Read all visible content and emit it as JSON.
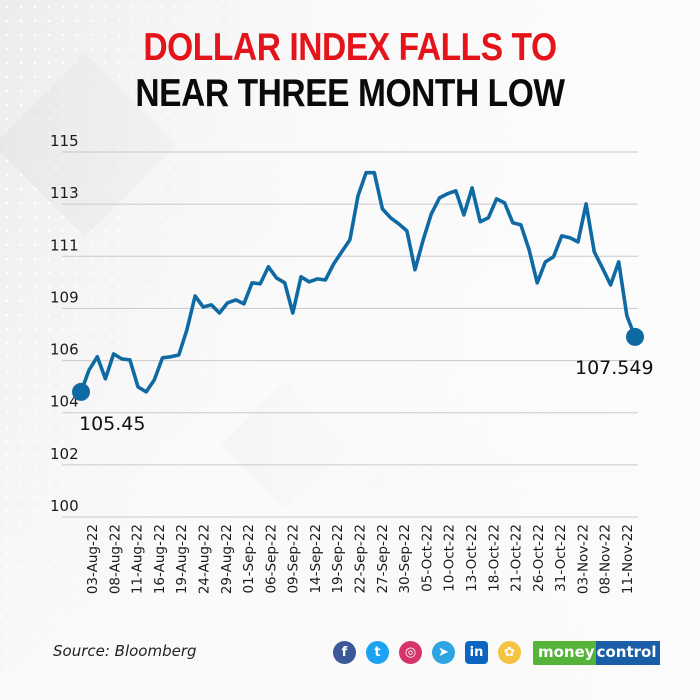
{
  "title": {
    "line1": "DOLLAR INDEX FALLS TO",
    "line2": "NEAR THREE MONTH LOW",
    "line1_color": "#e4141b",
    "line2_color": "#0a0a0a"
  },
  "footer": {
    "source": "Source: Bloomberg",
    "social_icons": [
      {
        "name": "facebook-icon",
        "glyph": "f",
        "color": "#3b5998"
      },
      {
        "name": "twitter-icon",
        "glyph": "t",
        "color": "#1da1f2"
      },
      {
        "name": "instagram-icon",
        "glyph": "◎",
        "color": "#d6336c"
      },
      {
        "name": "telegram-icon",
        "glyph": "➤",
        "color": "#2ca5e0"
      },
      {
        "name": "linkedin-icon",
        "glyph": "in",
        "color": "#0a66c2"
      },
      {
        "name": "koo-icon",
        "glyph": "✿",
        "color": "#f5c242"
      }
    ],
    "brand": {
      "part1": "money",
      "part2": "control",
      "color1": "#56b33a",
      "color2": "#1b5ea8"
    }
  },
  "chart_data": {
    "type": "line",
    "title": "DOLLAR INDEX FALLS TO NEAR THREE MONTH LOW",
    "xlabel": "",
    "ylabel": "",
    "line_color": "#0f6aa3",
    "grid": true,
    "y_tick_labels": [
      "115",
      "113",
      "111",
      "109",
      "106",
      "104",
      "102",
      "100"
    ],
    "ylim": [
      100.68,
      114.6
    ],
    "x_tick_labels": [
      "03-Aug-22",
      "08-Aug-22",
      "11-Aug-22",
      "16-Aug-22",
      "19-Aug-22",
      "24-Aug-22",
      "29-Aug-22",
      "01-Sep-22",
      "06-Sep-22",
      "09-Sep-22",
      "14-Sep-22",
      "19-Sep-22",
      "22-Sep-22",
      "27-Sep-22",
      "30-Sep-22",
      "05-Oct-22",
      "10-Oct-22",
      "13-Oct-22",
      "18-Oct-22",
      "21-Oct-22",
      "26-Oct-22",
      "31-Oct-22",
      "03-Nov-22",
      "08-Nov-22",
      "11-Nov-22"
    ],
    "annotations": [
      {
        "label": "105.45",
        "point": "start"
      },
      {
        "label": "107.549",
        "point": "end"
      }
    ],
    "series": [
      {
        "name": "Dollar Index",
        "values": [
          105.45,
          106.29,
          106.79,
          105.95,
          106.9,
          106.71,
          106.67,
          105.64,
          105.45,
          105.91,
          106.75,
          106.79,
          106.86,
          107.82,
          109.11,
          108.69,
          108.77,
          108.46,
          108.85,
          108.96,
          108.81,
          109.61,
          109.57,
          110.22,
          109.8,
          109.61,
          108.46,
          109.84,
          109.65,
          109.76,
          109.72,
          110.33,
          110.79,
          111.25,
          112.93,
          113.81,
          113.81,
          112.43,
          112.09,
          111.86,
          111.59,
          110.11,
          111.25,
          112.24,
          112.85,
          113.01,
          113.12,
          112.2,
          113.23,
          111.94,
          112.09,
          112.81,
          112.66,
          111.9,
          111.82,
          110.87,
          109.61,
          110.41,
          110.6,
          111.4,
          111.33,
          111.17,
          112.62,
          110.79,
          110.18,
          109.53,
          110.41,
          108.35,
          107.549
        ]
      }
    ]
  }
}
